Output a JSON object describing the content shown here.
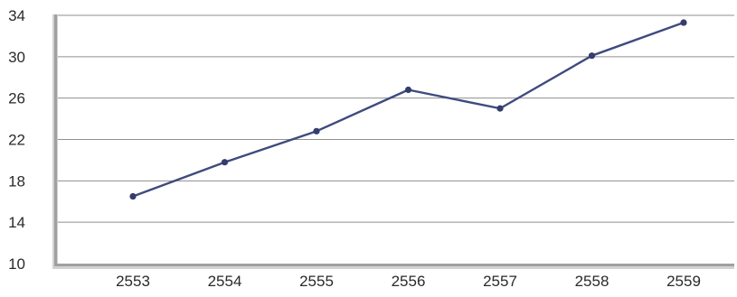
{
  "chart_data": {
    "type": "line",
    "title": "",
    "xlabel": "",
    "ylabel": "",
    "categories": [
      "2553",
      "2554",
      "2555",
      "2556",
      "2557",
      "2558",
      "2559"
    ],
    "series": [
      {
        "values": [
          16.5,
          19.8,
          22.8,
          26.8,
          25.0,
          30.1,
          33.3
        ]
      }
    ],
    "ylim": [
      10,
      34
    ],
    "yticks": [
      "34",
      "30",
      "26",
      "22",
      "18",
      "14",
      "10"
    ],
    "grid": true,
    "legend": "none",
    "colors": {
      "line": "#3f4a7e",
      "marker": "#343d6d",
      "grid": "#8f8f8f",
      "axis": "#a0a0a0",
      "axis_shadow": "#d2d2d2",
      "tick_label": "#2a2a2a"
    }
  }
}
